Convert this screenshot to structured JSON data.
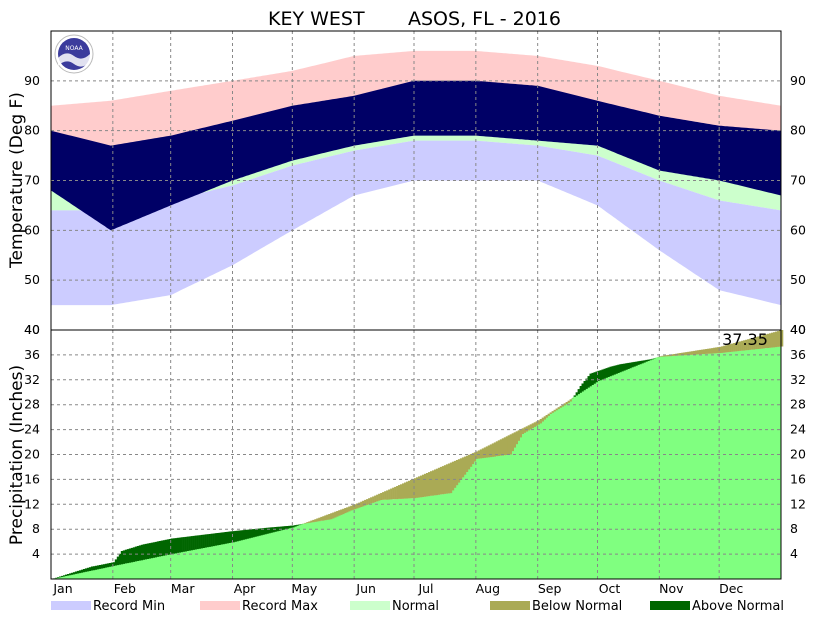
{
  "chart_data": [
    {
      "type": "area",
      "title_left": "KEY WEST",
      "title_right": "ASOS, FL - 2016",
      "ylabel": "Temperature (Deg F)",
      "ylim": [
        40,
        100
      ],
      "yticks": [
        50,
        60,
        70,
        80,
        90
      ],
      "grid": true,
      "xlim_days": [
        0,
        366
      ],
      "month_ticks": [
        "Jan",
        "Feb",
        "Mar",
        "Apr",
        "May",
        "Jun",
        "Jul",
        "Aug",
        "Sep",
        "Oct",
        "Nov",
        "Dec"
      ],
      "colors": {
        "record_min": "#ccccff",
        "record_max": "#ffcccc",
        "normal": "#ccffcc",
        "actual": "#000066"
      },
      "record_max_anchors": {
        "day": [
          0,
          30,
          60,
          91,
          121,
          152,
          182,
          213,
          244,
          274,
          305,
          335,
          366
        ],
        "high": [
          85,
          86,
          88,
          90,
          92,
          95,
          96,
          96,
          95,
          93,
          90,
          87,
          85
        ]
      },
      "record_min_anchors": {
        "day": [
          0,
          30,
          60,
          91,
          121,
          152,
          182,
          213,
          244,
          274,
          305,
          335,
          366
        ],
        "low": [
          45,
          45,
          47,
          53,
          60,
          67,
          70,
          70,
          70,
          65,
          56,
          48,
          45
        ]
      },
      "normal_anchors": {
        "day": [
          0,
          30,
          60,
          91,
          121,
          152,
          182,
          213,
          244,
          274,
          305,
          335,
          366
        ],
        "high": [
          76,
          76,
          77,
          79,
          83,
          86,
          89,
          89,
          88,
          85,
          81,
          78,
          76
        ],
        "low": [
          64,
          64,
          66,
          69,
          73,
          76,
          78,
          78,
          77,
          75,
          70,
          66,
          64
        ]
      },
      "actual_anchors": {
        "day": [
          0,
          30,
          60,
          91,
          121,
          152,
          182,
          213,
          244,
          274,
          305,
          335,
          366
        ],
        "high": [
          80,
          77,
          79,
          82,
          85,
          87,
          90,
          90,
          89,
          86,
          83,
          81,
          80
        ],
        "low": [
          68,
          60,
          65,
          70,
          74,
          77,
          79,
          79,
          78,
          77,
          72,
          70,
          67
        ]
      }
    },
    {
      "type": "area",
      "ylabel": "Precipitation (Inches)",
      "ylim": [
        0,
        40
      ],
      "yticks": [
        4,
        8,
        12,
        16,
        20,
        24,
        28,
        32,
        36,
        40
      ],
      "grid": true,
      "total_label": "37.35",
      "colors": {
        "normal": "#80ff80",
        "below_normal": "#aaaa55",
        "above_normal": "#006600"
      },
      "normal_cumulative": {
        "day": [
          0,
          31,
          60,
          91,
          121,
          152,
          182,
          213,
          244,
          274,
          305,
          335,
          366
        ],
        "inches": [
          0,
          2.1,
          4.0,
          5.9,
          8.3,
          12.0,
          16.2,
          20.5,
          25.5,
          31.8,
          35.8,
          37.3,
          40.0
        ]
      },
      "actual_cumulative": {
        "day": [
          0,
          20,
          31,
          35,
          45,
          60,
          91,
          110,
          121,
          140,
          150,
          165,
          182,
          200,
          213,
          230,
          236,
          245,
          250,
          260,
          265,
          270,
          280,
          285,
          300,
          305,
          335,
          366
        ],
        "inches": [
          0,
          2.0,
          2.7,
          4.5,
          5.5,
          6.5,
          7.7,
          8.3,
          8.6,
          9.6,
          11.0,
          12.7,
          13.0,
          13.8,
          19.3,
          20.0,
          23.3,
          25.0,
          26.5,
          28.5,
          31.0,
          33.0,
          34.1,
          34.5,
          35.3,
          35.7,
          36.3,
          37.35
        ]
      }
    }
  ],
  "legend": [
    {
      "label": "Record Min",
      "color": "#ccccff"
    },
    {
      "label": "Record Max",
      "color": "#ffcccc"
    },
    {
      "label": "Normal",
      "color": "#ccffcc"
    },
    {
      "label": "Below Normal",
      "color": "#aaaa55"
    },
    {
      "label": "Above Normal",
      "color": "#006600"
    }
  ],
  "logo_text": "NOAA"
}
